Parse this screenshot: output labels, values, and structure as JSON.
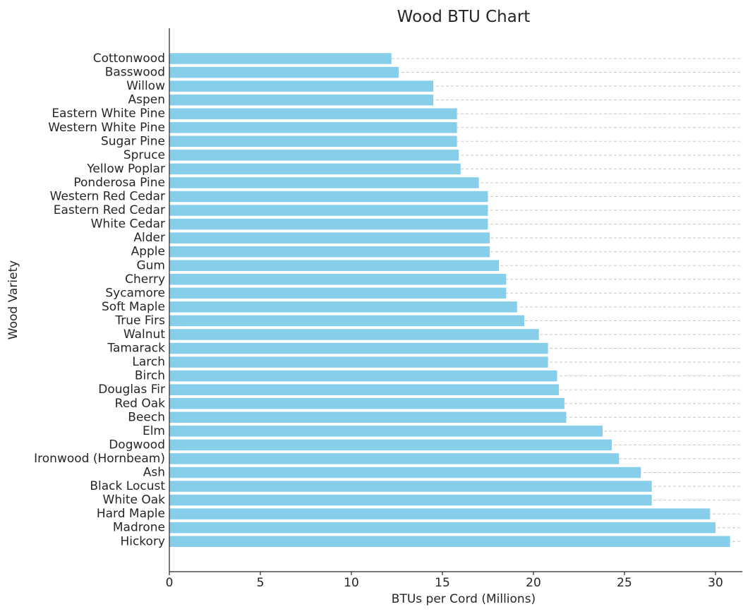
{
  "chart_data": {
    "type": "bar",
    "orientation": "horizontal",
    "title": "Wood BTU Chart",
    "xlabel": "BTUs per Cord (Millions)",
    "ylabel": "Wood Variety",
    "xlim": [
      0,
      31.5
    ],
    "xticks": [
      0,
      5,
      10,
      15,
      20,
      25,
      30
    ],
    "grid": "horizontal dashed",
    "bar_color": "#87ceeb",
    "categories": [
      "Cottonwood",
      "Basswood",
      "Willow",
      "Aspen",
      "Eastern White Pine",
      "Western White Pine",
      "Sugar Pine",
      "Spruce",
      "Yellow Poplar",
      "Ponderosa Pine",
      "Western Red Cedar",
      "Eastern Red Cedar",
      "White Cedar",
      "Alder",
      "Apple",
      "Gum",
      "Cherry",
      "Sycamore",
      "Soft Maple",
      "True Firs",
      "Walnut",
      "Tamarack",
      "Larch",
      "Birch",
      "Douglas Fir",
      "Red Oak",
      "Beech",
      "Elm",
      "Dogwood",
      "Ironwood (Hornbeam)",
      "Ash",
      "Black Locust",
      "White Oak",
      "Hard Maple",
      "Madrone",
      "Hickory"
    ],
    "values": [
      12.2,
      12.6,
      14.5,
      14.5,
      15.8,
      15.8,
      15.8,
      15.9,
      16.0,
      17.0,
      17.5,
      17.5,
      17.5,
      17.6,
      17.6,
      18.1,
      18.5,
      18.5,
      19.1,
      19.5,
      20.3,
      20.8,
      20.8,
      21.3,
      21.4,
      21.7,
      21.8,
      23.8,
      24.3,
      24.7,
      25.9,
      26.5,
      26.5,
      29.7,
      30.0,
      30.8
    ]
  }
}
